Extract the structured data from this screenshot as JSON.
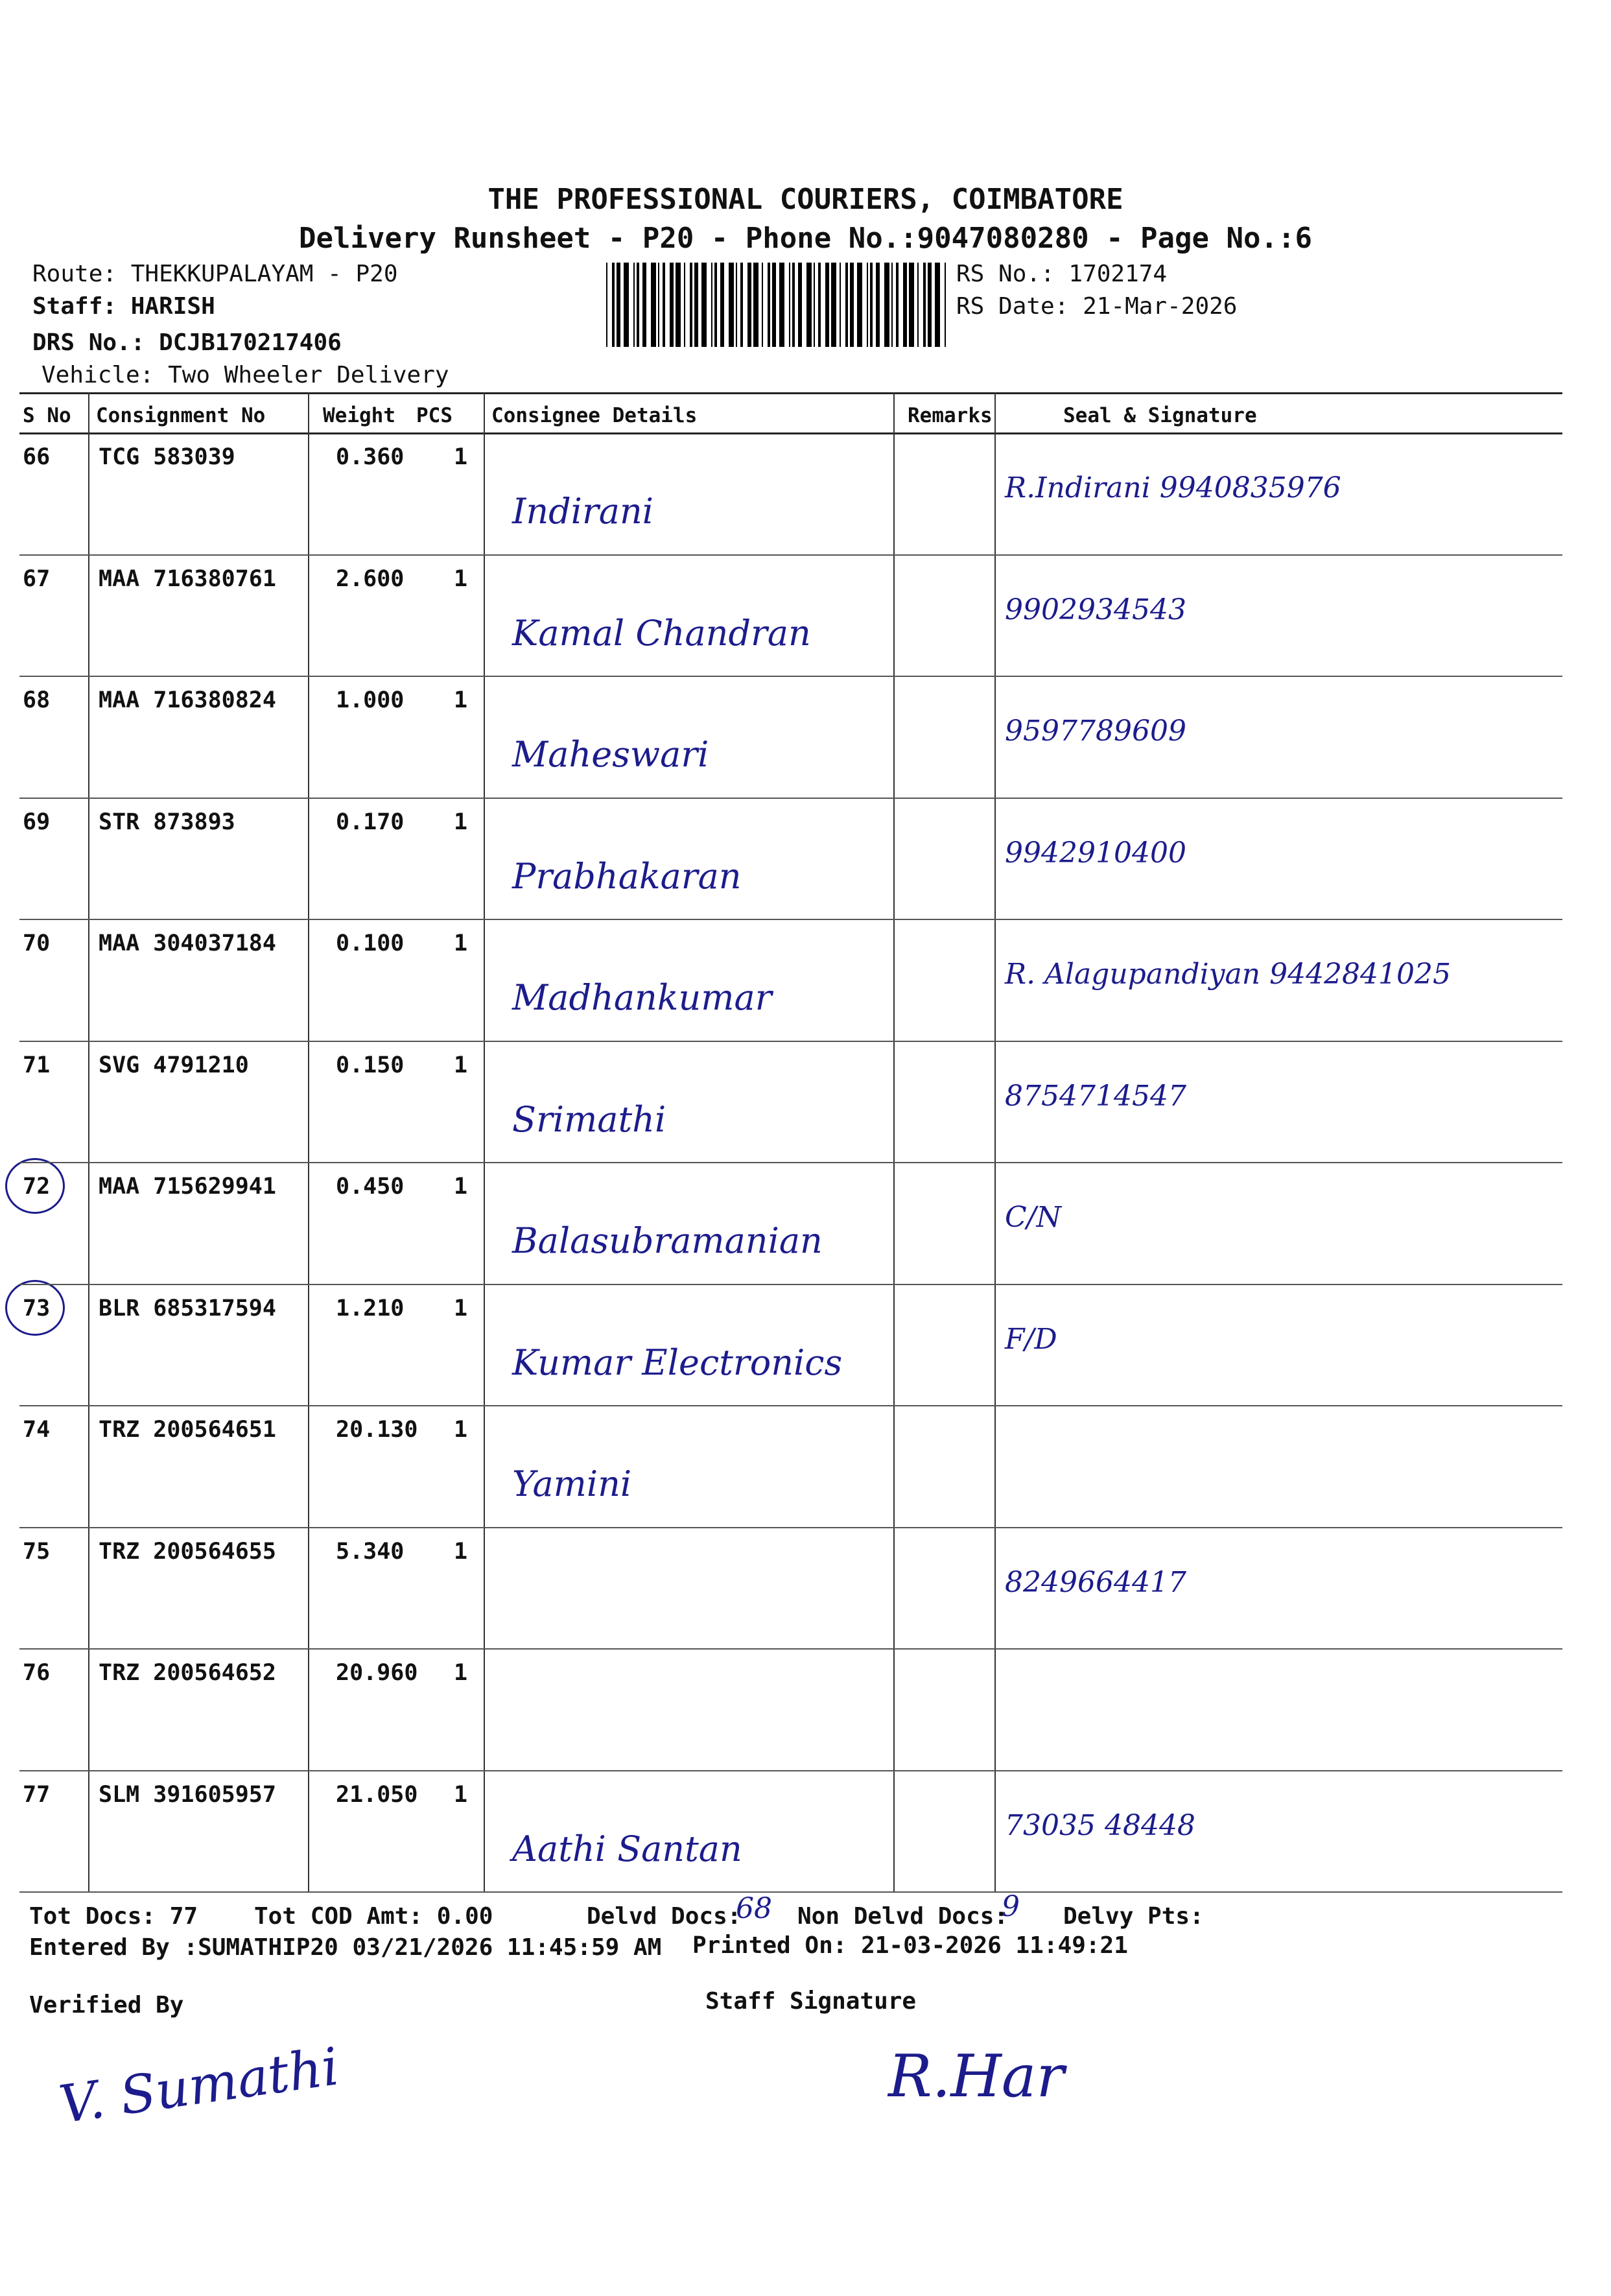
{
  "header": {
    "company": "THE PROFESSIONAL COURIERS, COIMBATORE",
    "subtitle": "Delivery Runsheet - P20 - Phone No.:9047080280 - Page No.:6",
    "route": "Route: THEKKUPALAYAM - P20",
    "staff": "Staff: HARISH",
    "drs_no": "DRS No.: DCJB170217406",
    "vehicle": "Vehicle: Two Wheeler Delivery",
    "rs_no": "RS No.: 1702174",
    "rs_date": "RS Date: 21-Mar-2026"
  },
  "table": {
    "columns": [
      "S No",
      "Consignment No",
      "Weight",
      "PCS",
      "Consignee Details",
      "Remarks",
      "Seal & Signature"
    ],
    "rows": [
      {
        "sno": "66",
        "consignment": "TCG 583039",
        "weight": "0.360",
        "pcs": "1",
        "consignee": "Indirani",
        "signature": "R.Indirani 9940835976",
        "circled": false
      },
      {
        "sno": "67",
        "consignment": "MAA 716380761",
        "weight": "2.600",
        "pcs": "1",
        "consignee": "Kamal Chandran",
        "signature": "9902934543",
        "circled": false
      },
      {
        "sno": "68",
        "consignment": "MAA 716380824",
        "weight": "1.000",
        "pcs": "1",
        "consignee": "Maheswari",
        "signature": "9597789609",
        "circled": false
      },
      {
        "sno": "69",
        "consignment": "STR 873893",
        "weight": "0.170",
        "pcs": "1",
        "consignee": "Prabhakaran",
        "signature": "9942910400",
        "circled": false
      },
      {
        "sno": "70",
        "consignment": "MAA 304037184",
        "weight": "0.100",
        "pcs": "1",
        "consignee": "Madhankumar",
        "signature": "R. Alagupandiyan 9442841025",
        "circled": false
      },
      {
        "sno": "71",
        "consignment": "SVG 4791210",
        "weight": "0.150",
        "pcs": "1",
        "consignee": "Srimathi",
        "signature": "8754714547",
        "circled": false
      },
      {
        "sno": "72",
        "consignment": "MAA 715629941",
        "weight": "0.450",
        "pcs": "1",
        "consignee": "Balasubramanian",
        "signature": "C/N",
        "circled": true
      },
      {
        "sno": "73",
        "consignment": "BLR 685317594",
        "weight": "1.210",
        "pcs": "1",
        "consignee": "Kumar Electronics",
        "signature": "F/D",
        "circled": true
      },
      {
        "sno": "74",
        "consignment": "TRZ 200564651",
        "weight": "20.130",
        "pcs": "1",
        "consignee": "Yamini",
        "signature": "",
        "circled": false
      },
      {
        "sno": "75",
        "consignment": "TRZ 200564655",
        "weight": "5.340",
        "pcs": "1",
        "consignee": "",
        "signature": "8249664417",
        "circled": false
      },
      {
        "sno": "76",
        "consignment": "TRZ 200564652",
        "weight": "20.960",
        "pcs": "1",
        "consignee": "",
        "signature": "",
        "circled": false
      },
      {
        "sno": "77",
        "consignment": "SLM 391605957",
        "weight": "21.050",
        "pcs": "1",
        "consignee": "Aathi Santan",
        "signature": "73035 48448",
        "circled": false
      }
    ]
  },
  "footer": {
    "tot_docs": "Tot Docs:  77",
    "tot_cod": "Tot COD Amt:   0.00",
    "delvd_docs_label": "Delvd Docs:",
    "delvd_docs_value": "68",
    "non_delvd_label": "Non Delvd Docs:",
    "non_delvd_value": "9",
    "delvy_pts": "Delvy Pts:",
    "entered_by": "Entered By :SUMATHIP20 03/21/2026 11:45:59 AM",
    "printed_on": "Printed On: 21-03-2026 11:49:21",
    "verified_by": "Verified By",
    "verified_signature": "V. Sumathi",
    "staff_signature": "Staff Signature",
    "staff_signature_mark": "R.Har"
  },
  "colors": {
    "ink": "#111111",
    "pen": "#1c1c8c"
  }
}
